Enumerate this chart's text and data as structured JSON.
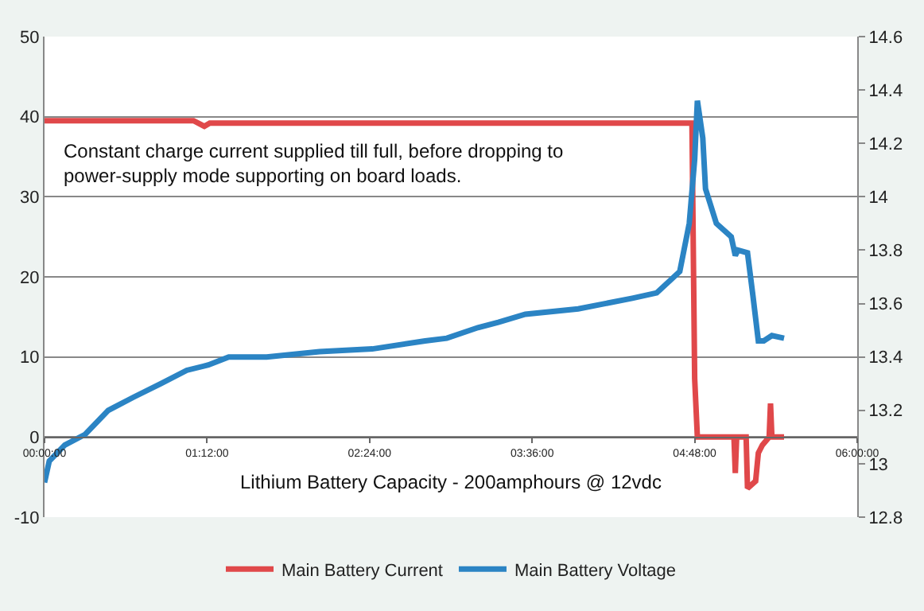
{
  "chart_data": {
    "type": "line",
    "xlabel": "Lithium Battery Capacity - 200amphours @ 12vdc",
    "annotations": [
      "Constant charge current supplied till full, before dropping to\npower-supply mode supporting on board loads."
    ],
    "xlim": [
      0,
      6
    ],
    "xticks": [
      {
        "value": 0,
        "label": "00:00:00"
      },
      {
        "value": 1.2,
        "label": "01:12:00"
      },
      {
        "value": 2.4,
        "label": "02:24:00"
      },
      {
        "value": 3.6,
        "label": "03:36:00"
      },
      {
        "value": 4.8,
        "label": "04:48:00"
      },
      {
        "value": 6,
        "label": "06:00:00"
      }
    ],
    "ylim": [
      -10,
      50
    ],
    "yticks": [
      -10,
      0,
      10,
      20,
      30,
      40,
      50
    ],
    "y2lim": [
      12.8,
      14.6
    ],
    "y2ticks": [
      12.8,
      {
        "value": 13,
        "label": "13"
      },
      13.2,
      13.4,
      13.6,
      13.8,
      {
        "value": 14,
        "label": "14"
      },
      14.2,
      14.4,
      14.6
    ],
    "grid": "y",
    "legend": "bottom",
    "marker": "none",
    "line_style": "solid",
    "series": [
      {
        "name": "Main Battery Current",
        "color": "#e0484a",
        "x": [
          0,
          1.1,
          1.18,
          1.22,
          1.3,
          4.78,
          4.8,
          4.82,
          4.84,
          5.09,
          5.1,
          5.11,
          5.18,
          5.19,
          5.25,
          5.27,
          5.3,
          5.35,
          5.36,
          5.37,
          5.46
        ],
        "values": [
          39.5,
          39.5,
          38.8,
          39.2,
          39.2,
          39.2,
          7.3,
          0,
          0,
          0,
          -4.5,
          0,
          0,
          -6.4,
          -5.5,
          -2,
          -1,
          0,
          4.2,
          0,
          0
        ]
      },
      {
        "name": "Main Battery Voltage",
        "color": "#2b84c4",
        "axis": "y2",
        "x": [
          0,
          0.035,
          0.15,
          0.3,
          0.47,
          0.66,
          0.86,
          1.05,
          1.21,
          1.36,
          1.64,
          2.03,
          2.42,
          2.81,
          2.97,
          3.2,
          3.35,
          3.55,
          3.94,
          4.34,
          4.52,
          4.69,
          4.76,
          4.8,
          4.82,
          4.84,
          4.86,
          4.88,
          4.96,
          5.07,
          5.1,
          5.12,
          5.19,
          5.23,
          5.27,
          5.31,
          5.37,
          5.46
        ],
        "values": [
          12.93,
          13.01,
          13.07,
          13.11,
          13.2,
          13.25,
          13.3,
          13.35,
          13.37,
          13.4,
          13.4,
          13.42,
          13.43,
          13.46,
          13.47,
          13.51,
          13.53,
          13.56,
          13.58,
          13.62,
          13.64,
          13.72,
          13.9,
          14.14,
          14.36,
          14.29,
          14.22,
          14.03,
          13.9,
          13.85,
          13.78,
          13.8,
          13.79,
          13.63,
          13.46,
          13.46,
          13.48,
          13.47
        ]
      }
    ]
  }
}
